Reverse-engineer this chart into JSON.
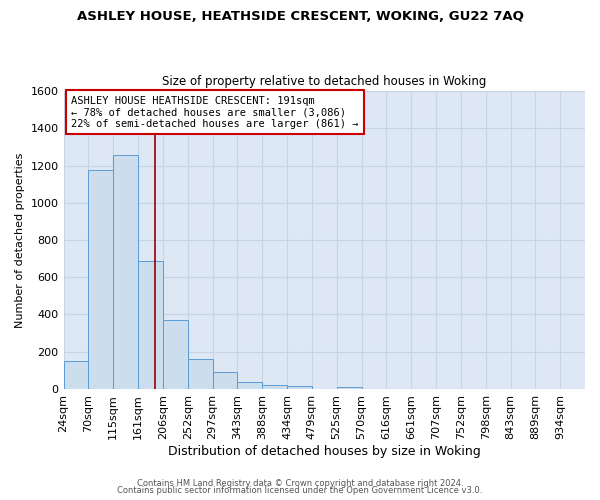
{
  "title": "ASHLEY HOUSE, HEATHSIDE CRESCENT, WOKING, GU22 7AQ",
  "subtitle": "Size of property relative to detached houses in Woking",
  "xlabel": "Distribution of detached houses by size in Woking",
  "ylabel": "Number of detached properties",
  "bar_values": [
    150,
    1175,
    1255,
    685,
    370,
    160,
    90,
    38,
    22,
    15,
    0,
    12,
    0,
    0,
    0,
    0,
    0,
    0,
    0,
    0,
    0
  ],
  "bar_labels": [
    "24sqm",
    "70sqm",
    "115sqm",
    "161sqm",
    "206sqm",
    "252sqm",
    "297sqm",
    "343sqm",
    "388sqm",
    "434sqm",
    "479sqm",
    "525sqm",
    "570sqm",
    "616sqm",
    "661sqm",
    "707sqm",
    "752sqm",
    "798sqm",
    "843sqm",
    "889sqm",
    "934sqm"
  ],
  "n_bars": 21,
  "ylim": [
    0,
    1600
  ],
  "bar_color": "#ccdded",
  "bar_edge_color": "#5b9bd5",
  "grid_color": "#c8d4e4",
  "plot_bg_color": "#dde8f4",
  "fig_bg_color": "#ffffff",
  "vline_x": 3.67,
  "vline_color": "#990000",
  "annotation_title": "ASHLEY HOUSE HEATHSIDE CRESCENT: 191sqm",
  "annotation_line1": "← 78% of detached houses are smaller (3,086)",
  "annotation_line2": "22% of semi-detached houses are larger (861) →",
  "footer1": "Contains HM Land Registry data © Crown copyright and database right 2024.",
  "footer2": "Contains public sector information licensed under the Open Government Licence v3.0."
}
